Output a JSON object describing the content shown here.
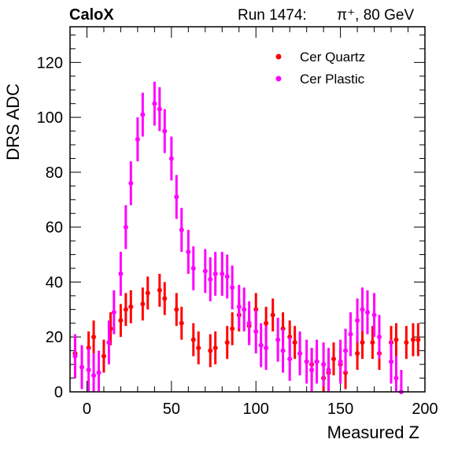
{
  "header": {
    "experiment": "CaloX",
    "run_label": "Run 1474:",
    "particle": "π⁺, 80 GeV"
  },
  "chart_data": {
    "type": "scatter",
    "title": "",
    "xlabel": "Measured Z",
    "ylabel": "DRS ADC",
    "xlim": [
      -10,
      200
    ],
    "ylim": [
      0,
      133
    ],
    "xticks": [
      0,
      50,
      100,
      150,
      200
    ],
    "yticks": [
      0,
      20,
      40,
      60,
      80,
      100,
      120
    ],
    "legend_position": "top-right",
    "error_bars": true,
    "series": [
      {
        "name": "Cer Quartz",
        "color": "#ff0000",
        "x": [
          -7,
          1,
          4,
          10,
          14,
          20,
          23,
          26,
          33,
          36,
          43,
          46,
          53,
          56,
          63,
          66,
          73,
          76,
          83,
          86,
          90,
          96,
          100,
          106,
          110,
          116,
          120,
          123,
          126,
          133,
          136,
          140,
          143,
          146,
          150,
          153,
          160,
          163,
          169,
          173,
          180,
          183,
          189,
          193,
          196
        ],
        "y": [
          14,
          16,
          20,
          13,
          23,
          26,
          30,
          31,
          32,
          36,
          37,
          34,
          30,
          25,
          19,
          16,
          15,
          16,
          18,
          23,
          28,
          24,
          30,
          25,
          28,
          23,
          20,
          18,
          14,
          10,
          11,
          5,
          7,
          12,
          10,
          7,
          14,
          18,
          18,
          14,
          18,
          19,
          18,
          19,
          19
        ],
        "err": [
          6,
          6,
          6,
          6,
          6,
          6,
          6,
          6,
          6,
          6,
          6,
          6,
          6,
          6,
          6,
          6,
          6,
          6,
          6,
          6,
          6,
          6,
          6,
          6,
          6,
          6,
          6,
          6,
          6,
          6,
          6,
          6,
          6,
          6,
          6,
          6,
          6,
          6,
          6,
          6,
          6,
          6,
          6,
          6,
          6
        ]
      },
      {
        "name": "Cer Plastic",
        "color": "#ff00ff",
        "x": [
          -7,
          -3,
          1,
          4,
          7,
          13,
          16,
          20,
          23,
          26,
          30,
          33,
          40,
          43,
          46,
          50,
          53,
          56,
          60,
          63,
          70,
          73,
          76,
          80,
          83,
          86,
          90,
          93,
          96,
          100,
          103,
          106,
          113,
          116,
          120,
          126,
          130,
          133,
          136,
          140,
          143,
          150,
          153,
          156,
          160,
          163,
          166,
          170,
          173,
          180,
          183,
          186
        ],
        "y": [
          13,
          9,
          8,
          6,
          7,
          18,
          29,
          43,
          60,
          76,
          92,
          101,
          105,
          103,
          95,
          85,
          71,
          59,
          51,
          45,
          44,
          41,
          43,
          43,
          42,
          38,
          31,
          30,
          25,
          22,
          17,
          16,
          19,
          15,
          12,
          14,
          11,
          8,
          11,
          10,
          8,
          11,
          15,
          21,
          26,
          30,
          29,
          28,
          20,
          11,
          5,
          0
        ],
        "err": [
          8,
          8,
          8,
          8,
          8,
          8,
          8,
          8,
          8,
          8,
          8,
          8,
          8,
          8,
          8,
          8,
          8,
          8,
          8,
          8,
          8,
          8,
          8,
          8,
          8,
          8,
          8,
          8,
          8,
          8,
          8,
          8,
          8,
          8,
          8,
          8,
          8,
          8,
          8,
          8,
          8,
          8,
          8,
          8,
          8,
          8,
          8,
          8,
          8,
          8,
          8,
          8
        ]
      }
    ]
  }
}
